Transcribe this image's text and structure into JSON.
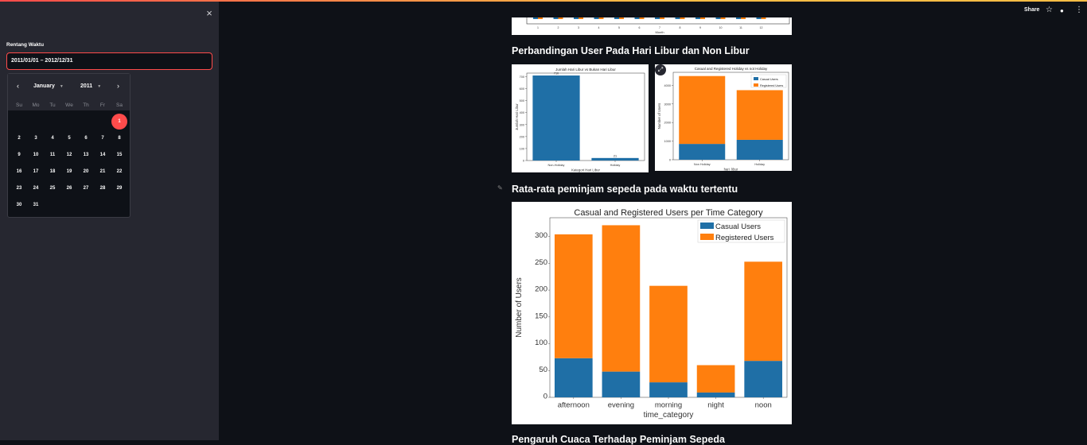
{
  "sidebar": {
    "close_icon": "×",
    "date_label": "Rentang Waktu",
    "date_value": "2011/01/01 – 2012/12/31",
    "calendar": {
      "prev_icon": "‹",
      "next_icon": "›",
      "month": "January",
      "year": "2011",
      "weekdays": [
        "Su",
        "Mo",
        "Tu",
        "We",
        "Th",
        "Fr",
        "Sa"
      ],
      "selected_day": "1",
      "days": [
        "1",
        "2",
        "3",
        "4",
        "5",
        "6",
        "7",
        "8",
        "9",
        "10",
        "11",
        "12",
        "13",
        "14",
        "15",
        "16",
        "17",
        "18",
        "19",
        "20",
        "21",
        "22",
        "23",
        "24",
        "25",
        "26",
        "27",
        "28",
        "29",
        "30",
        "31"
      ]
    }
  },
  "toolbar": {
    "share_label": "Share",
    "star_icon": "☆",
    "github_icon": "●",
    "menu_icon": "⋮"
  },
  "headings": {
    "section2": "Perbandingan User Pada Hari Libur dan Non Libur",
    "section3": "Rata-rata peminjam sepeda pada waktu tertentu",
    "section4": "Pengaruh Cuaca Terhadap Peminjam Sepeda"
  },
  "top_chart": {
    "xlabel": "Month",
    "ticks": [
      "1",
      "2",
      "3",
      "4",
      "5",
      "6",
      "7",
      "8",
      "9",
      "10",
      "11",
      "12"
    ]
  },
  "chart_data": [
    {
      "type": "bar",
      "title": "Jumlah Hari Libur vs Bukan Hari Libur",
      "xlabel": "Kategori Hari Libur",
      "ylabel": "Jumlah Hari Libur",
      "categories": [
        "Non-Holiday",
        "Holiday"
      ],
      "values": [
        710,
        21
      ],
      "ylim": [
        0,
        730
      ],
      "yticks": [
        "0",
        "100",
        "200",
        "300",
        "400",
        "500",
        "600",
        "700"
      ],
      "colors": [
        "#1f6fa6"
      ]
    },
    {
      "type": "bar",
      "title": "Casual and Registered Holiday vs not Holiday",
      "xlabel": "hari_libur",
      "ylabel": "Number of Users",
      "categories": [
        "Non Holiday",
        "Holiday"
      ],
      "series": [
        {
          "name": "Casual Users",
          "values": [
            850,
            1070
          ]
        },
        {
          "name": "Registered Users",
          "values": [
            3650,
            2670
          ]
        }
      ],
      "ylim": [
        0,
        4700
      ],
      "yticks": [
        "0",
        "1000",
        "2000",
        "3000",
        "4000"
      ],
      "legend": "top-right"
    },
    {
      "type": "bar",
      "title": "Casual and Registered Users per Time Category",
      "xlabel": "time_category",
      "ylabel": "Number of Users",
      "categories": [
        "afternoon",
        "evening",
        "morning",
        "night",
        "noon"
      ],
      "series": [
        {
          "name": "Casual Users",
          "values": [
            73,
            48,
            28,
            9,
            68
          ]
        },
        {
          "name": "Registered Users",
          "values": [
            231,
            273,
            180,
            51,
            185
          ]
        }
      ],
      "ylim": [
        0,
        335
      ],
      "yticks": [
        "0",
        "50",
        "100",
        "150",
        "200",
        "250",
        "300"
      ],
      "legend": "top-right",
      "colors": {
        "casual": "#1f6fa6",
        "registered": "#ff7f0e"
      }
    }
  ]
}
